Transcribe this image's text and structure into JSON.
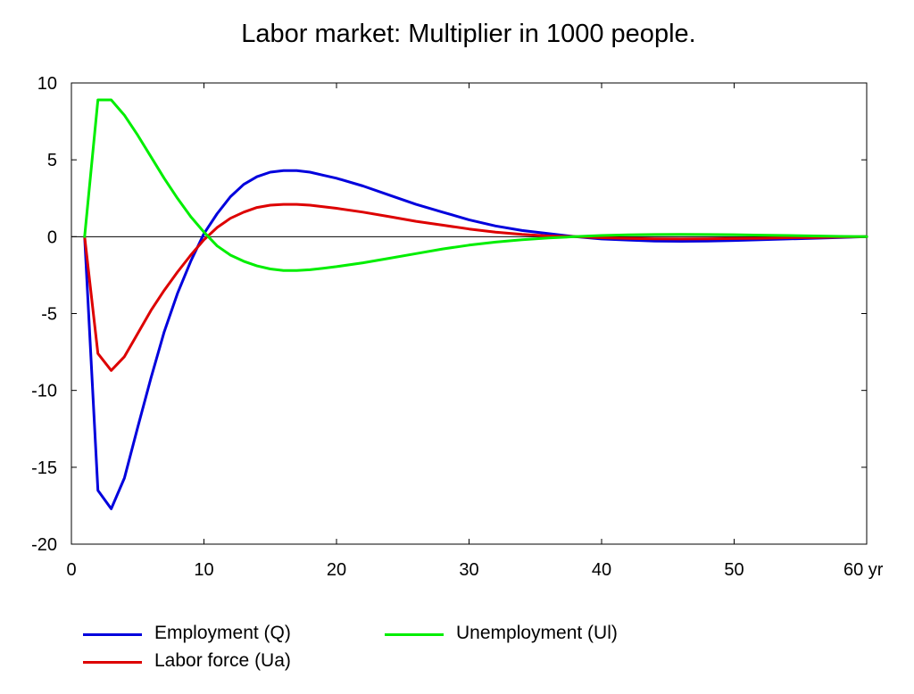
{
  "chart_data": {
    "type": "line",
    "title": "Labor market: Multiplier in 1000 people.",
    "xlim": [
      0,
      60
    ],
    "ylim": [
      -20,
      10
    ],
    "x_ticks": [
      0,
      10,
      20,
      30,
      40,
      50,
      60
    ],
    "x_tick_labels": [
      "0",
      "10",
      "20",
      "30",
      "40",
      "50",
      "60 yr"
    ],
    "y_ticks": [
      10,
      5,
      0,
      -5,
      -10,
      -15,
      -20
    ],
    "y_tick_labels": [
      "10",
      "5",
      "0",
      "-5",
      "-10",
      "-15",
      "-20"
    ],
    "grid": false,
    "zero_line": true,
    "legend_position": "bottom",
    "x": [
      1,
      2,
      3,
      4,
      5,
      6,
      7,
      8,
      9,
      10,
      11,
      12,
      13,
      14,
      15,
      16,
      17,
      18,
      19,
      20,
      22,
      24,
      26,
      28,
      30,
      32,
      34,
      36,
      38,
      40,
      42,
      44,
      46,
      48,
      50,
      52,
      54,
      56,
      58,
      60
    ],
    "series": [
      {
        "name": "Employment (Q)",
        "color": "#0000dd",
        "values": [
          0,
          -16.5,
          -17.7,
          -15.7,
          -12.4,
          -9.2,
          -6.2,
          -3.7,
          -1.6,
          0.2,
          1.5,
          2.6,
          3.4,
          3.9,
          4.2,
          4.3,
          4.3,
          4.2,
          4.0,
          3.8,
          3.3,
          2.7,
          2.1,
          1.6,
          1.1,
          0.7,
          0.4,
          0.2,
          0.0,
          -0.15,
          -0.22,
          -0.28,
          -0.3,
          -0.28,
          -0.25,
          -0.2,
          -0.15,
          -0.1,
          -0.05,
          0
        ]
      },
      {
        "name": "Labor force (Ua)",
        "color": "#dd0000",
        "values": [
          0,
          -7.6,
          -8.7,
          -7.8,
          -6.3,
          -4.8,
          -3.5,
          -2.3,
          -1.2,
          -0.2,
          0.6,
          1.2,
          1.6,
          1.9,
          2.05,
          2.1,
          2.1,
          2.05,
          1.95,
          1.85,
          1.6,
          1.3,
          1.0,
          0.75,
          0.5,
          0.3,
          0.15,
          0.05,
          0.0,
          -0.07,
          -0.11,
          -0.14,
          -0.15,
          -0.14,
          -0.12,
          -0.1,
          -0.07,
          -0.05,
          -0.02,
          0
        ]
      },
      {
        "name": "Unemployment (Ul)",
        "color": "#00ee00",
        "values": [
          0,
          8.9,
          8.9,
          7.9,
          6.6,
          5.2,
          3.8,
          2.5,
          1.3,
          0.3,
          -0.6,
          -1.2,
          -1.6,
          -1.9,
          -2.1,
          -2.2,
          -2.2,
          -2.15,
          -2.05,
          -1.95,
          -1.7,
          -1.4,
          -1.1,
          -0.8,
          -0.55,
          -0.35,
          -0.2,
          -0.08,
          0.0,
          0.08,
          0.12,
          0.14,
          0.15,
          0.14,
          0.13,
          0.1,
          0.08,
          0.05,
          0.02,
          0
        ]
      }
    ]
  },
  "legend": {
    "items": [
      {
        "label": "Employment (Q)",
        "color": "#0000dd"
      },
      {
        "label": "Labor force (Ua)",
        "color": "#dd0000"
      },
      {
        "label": "Unemployment (Ul)",
        "color": "#00ee00"
      }
    ]
  }
}
